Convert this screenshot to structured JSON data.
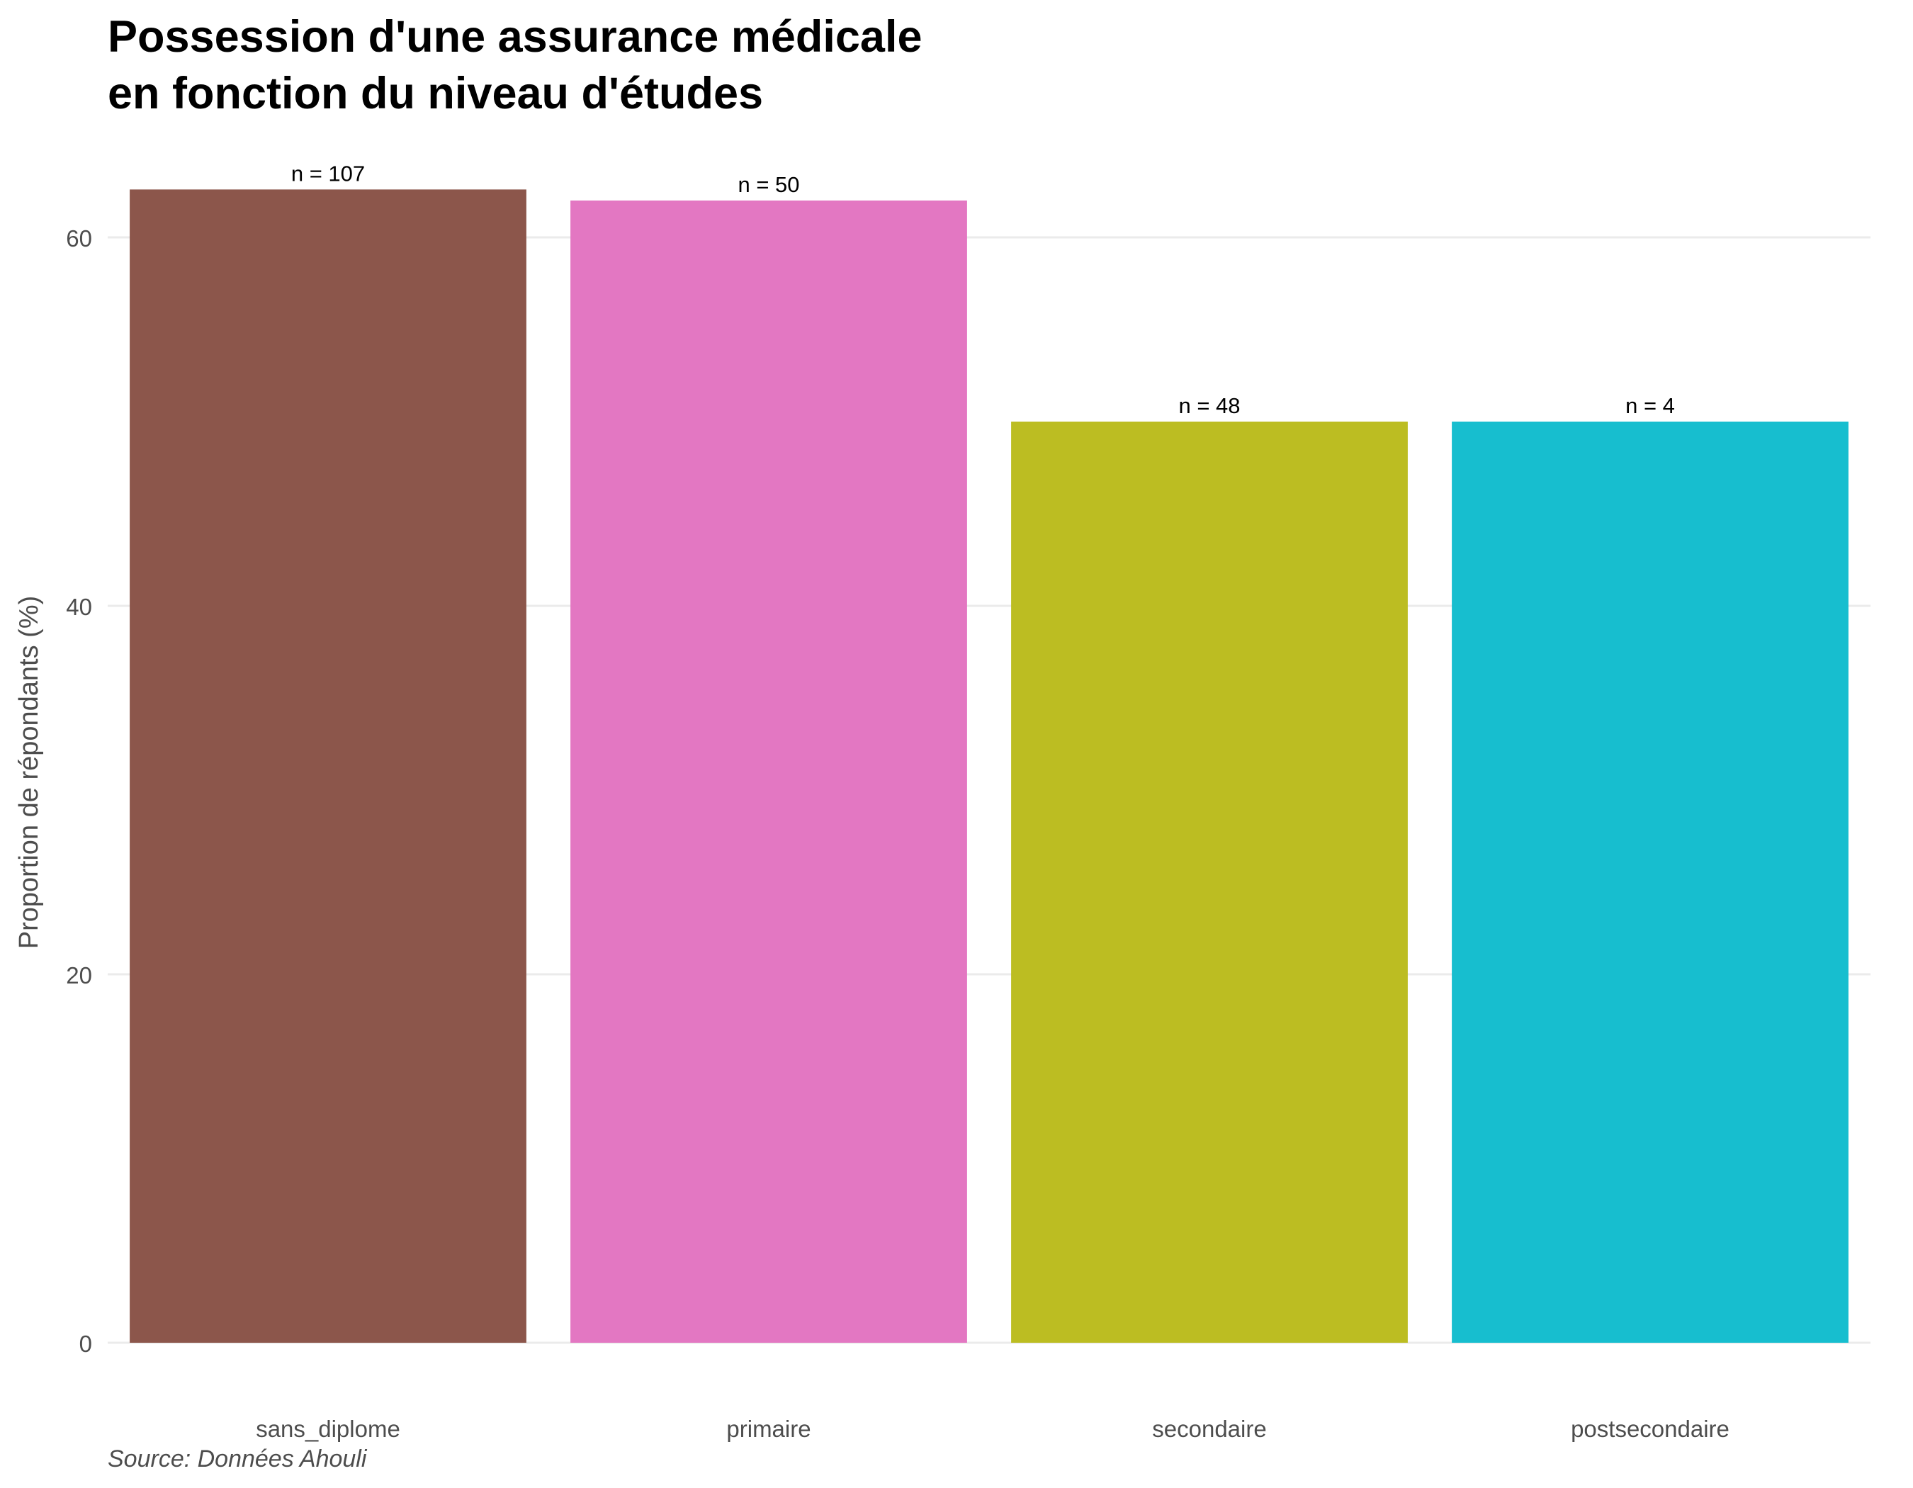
{
  "chart_data": {
    "type": "bar",
    "title_lines": [
      "Possession d'une assurance médicale",
      "en fonction du niveau d'études"
    ],
    "xlabel": "",
    "ylabel": "Proportion de répondants (%)",
    "ylim": [
      0,
      64
    ],
    "yticks": [
      0,
      20,
      40,
      60
    ],
    "ytick_labels": [
      "0",
      "20",
      "40",
      "60"
    ],
    "grid": true,
    "categories": [
      "sans_diplome",
      "primaire",
      "secondaire",
      "postsecondaire"
    ],
    "values": [
      62.6,
      62.0,
      50.0,
      50.0
    ],
    "bar_labels": [
      "n = 107",
      "n = 50",
      "n = 48",
      "n = 4"
    ],
    "colors": [
      "#8c564b",
      "#e377c2",
      "#bcbd22",
      "#17becf"
    ],
    "caption": "Source: Données Ahouli"
  }
}
